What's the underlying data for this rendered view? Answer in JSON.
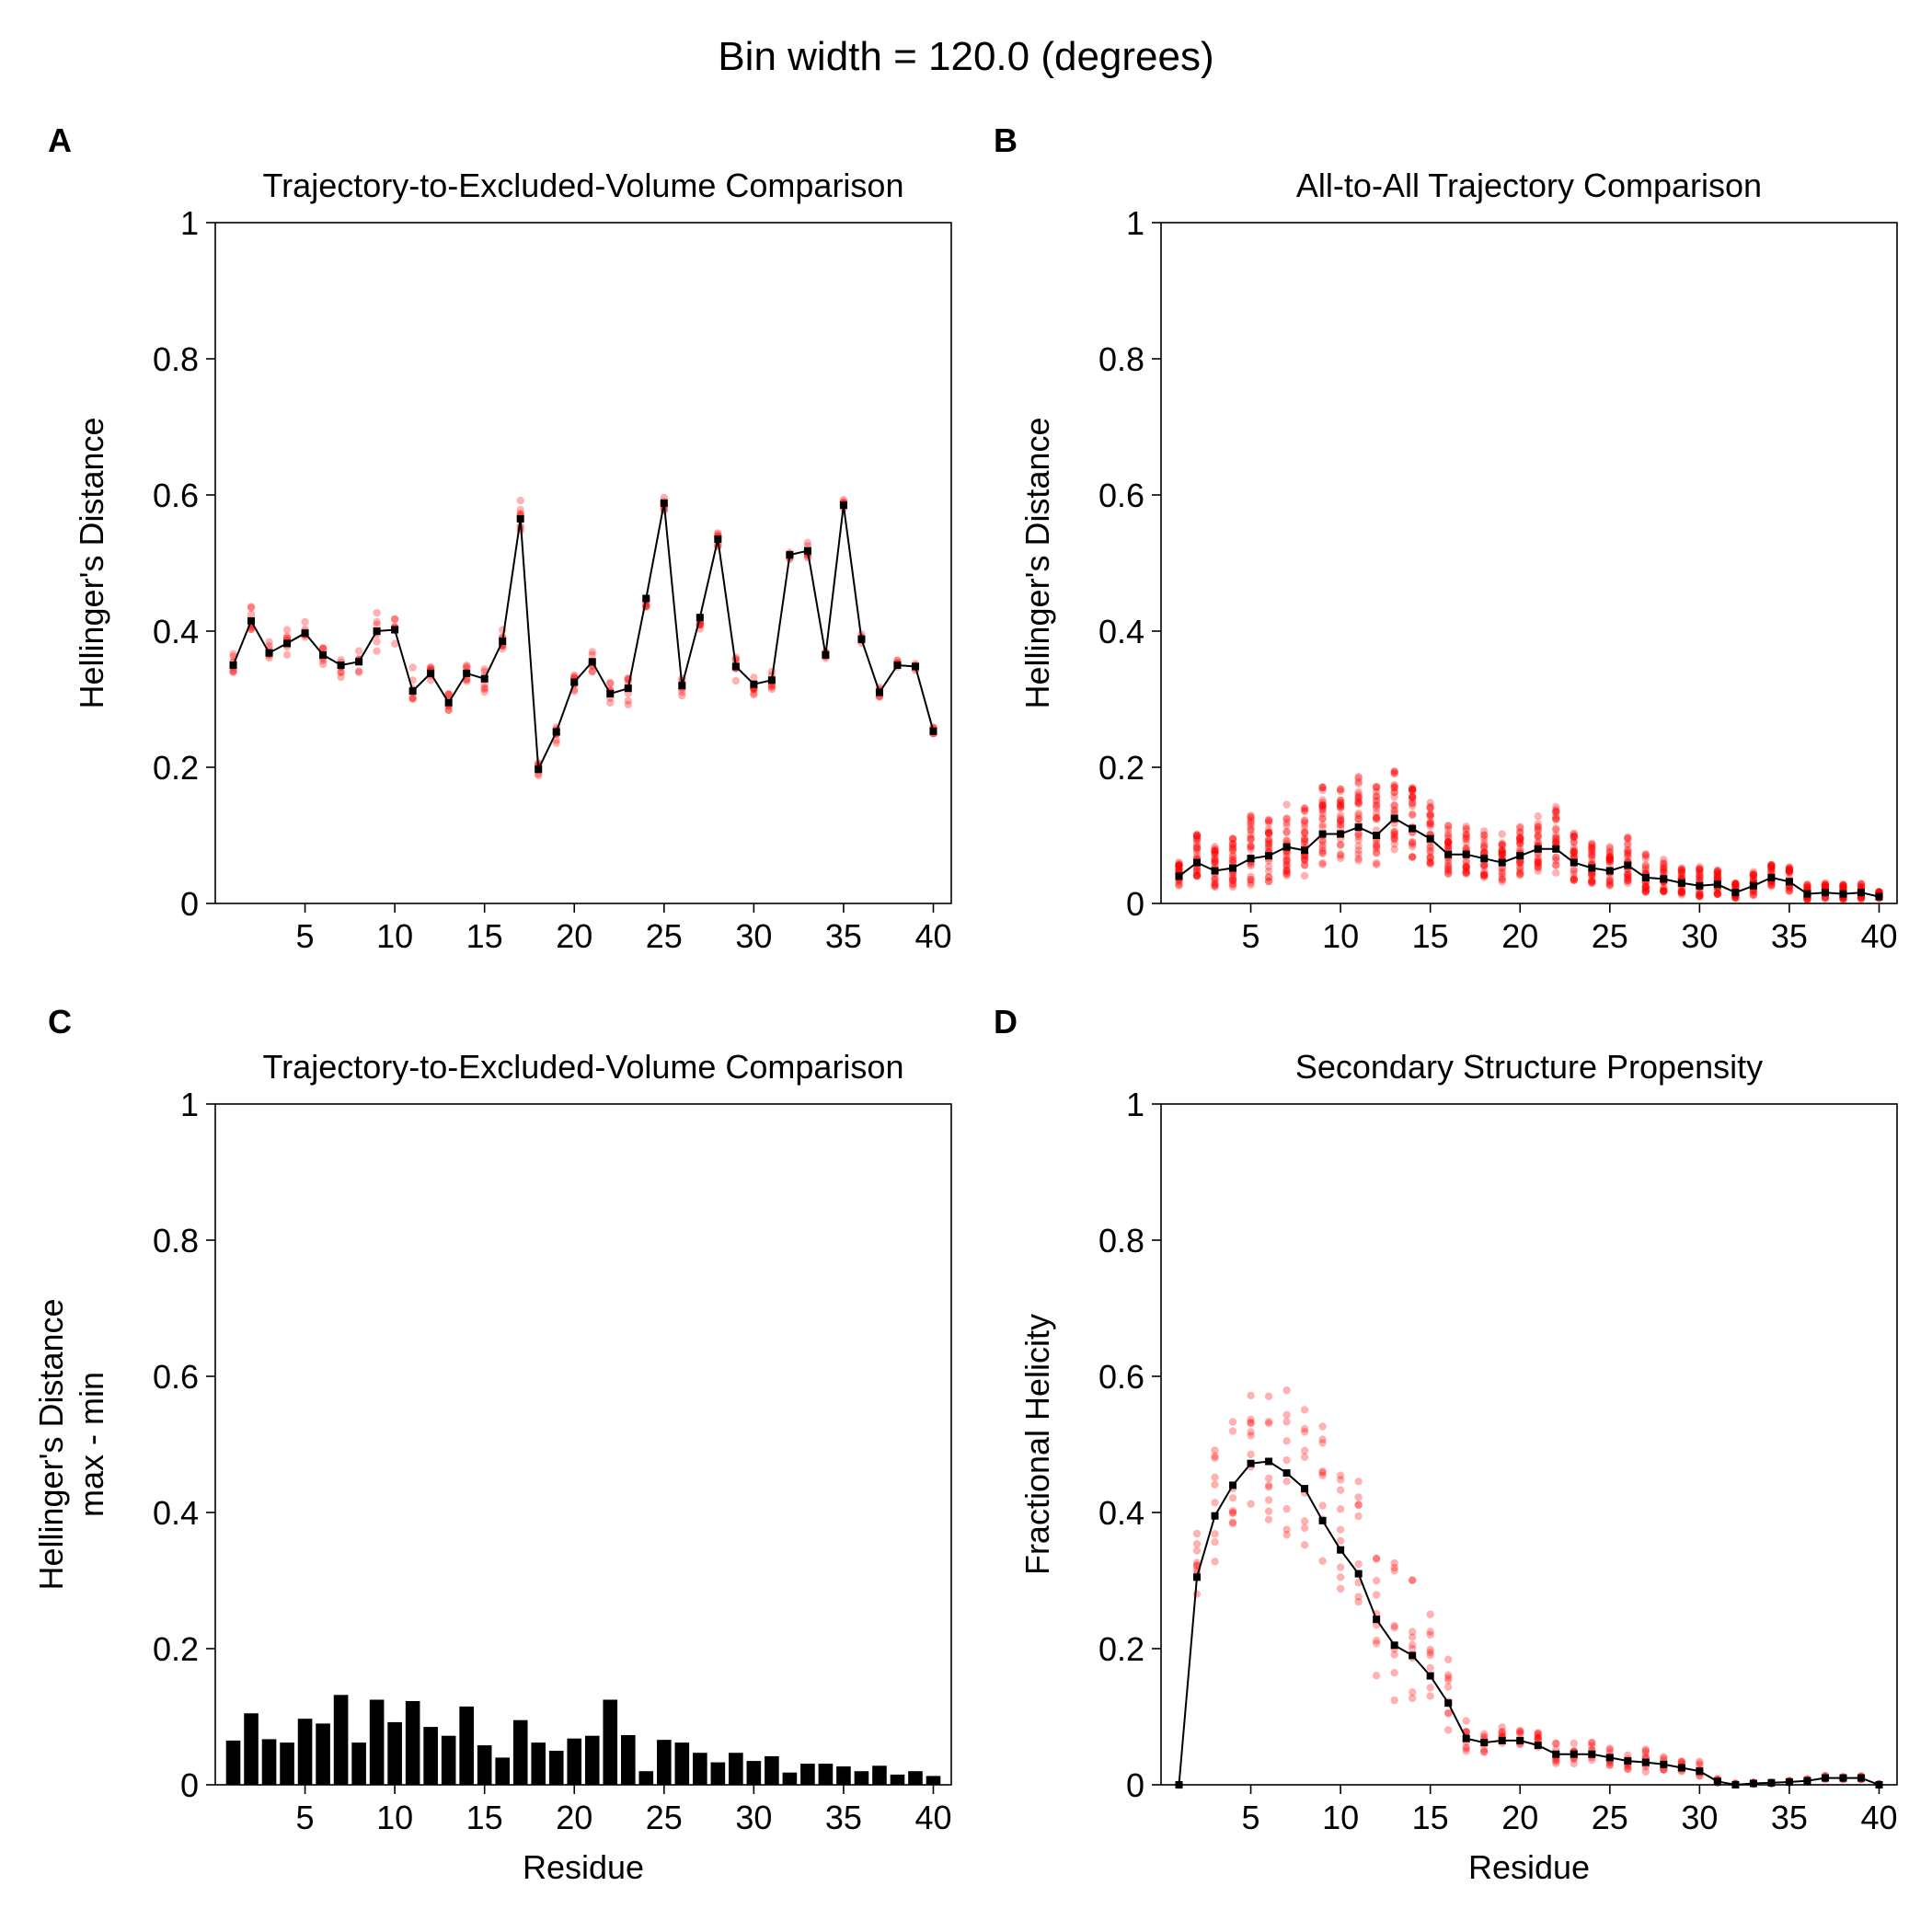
{
  "suptitle": "Bin width = 120.0 (degrees)",
  "colors": {
    "line": "#000000",
    "scatter": "#ff0000",
    "bar": "#000000"
  },
  "chart_data": [
    {
      "panel": "A",
      "type": "line",
      "title": "Trajectory-to-Excluded-Volume Comparison",
      "xlabel": "",
      "ylabel": [
        "Hellinger's Distance"
      ],
      "xlim": [
        0,
        41
      ],
      "ylim": [
        0,
        1
      ],
      "xticks": [
        5,
        10,
        15,
        20,
        25,
        30,
        35,
        40
      ],
      "yticks": [
        0,
        0.2,
        0.4,
        0.6,
        0.8,
        1
      ],
      "ytick_labels": [
        "0",
        "0.2",
        "0.4",
        "0.6",
        "0.8",
        "1"
      ],
      "x": [
        1,
        2,
        3,
        4,
        5,
        6,
        7,
        8,
        9,
        10,
        11,
        12,
        13,
        14,
        15,
        16,
        17,
        18,
        19,
        20,
        21,
        22,
        23,
        24,
        25,
        26,
        27,
        28,
        29,
        30,
        31,
        32,
        33,
        34,
        35,
        36,
        37,
        38,
        39,
        40
      ],
      "mean": [
        0.35,
        0.415,
        0.368,
        0.382,
        0.397,
        0.365,
        0.35,
        0.355,
        0.4,
        0.402,
        0.312,
        0.338,
        0.295,
        0.338,
        0.33,
        0.385,
        0.565,
        0.197,
        0.252,
        0.325,
        0.355,
        0.308,
        0.316,
        0.448,
        0.588,
        0.32,
        0.42,
        0.535,
        0.348,
        0.322,
        0.328,
        0.512,
        0.518,
        0.365,
        0.585,
        0.388,
        0.31,
        0.35,
        0.348,
        0.253
      ],
      "scatter_spread": [
        0.03,
        0.03,
        0.03,
        0.03,
        0.03,
        0.04,
        0.03,
        0.03,
        0.04,
        0.04,
        0.04,
        0.03,
        0.03,
        0.03,
        0.03,
        0.03,
        0.04,
        0.02,
        0.02,
        0.03,
        0.03,
        0.04,
        0.04,
        0.02,
        0.02,
        0.02,
        0.03,
        0.02,
        0.03,
        0.02,
        0.02,
        0.01,
        0.02,
        0.01,
        0.01,
        0.01,
        0.01,
        0.01,
        0.01,
        0.01
      ],
      "replicates": 8,
      "show_scatter": true
    },
    {
      "panel": "B",
      "type": "line",
      "title": "All-to-All Trajectory Comparison",
      "xlabel": "",
      "ylabel": [
        "Hellinger's Distance"
      ],
      "xlim": [
        0,
        41
      ],
      "ylim": [
        0,
        1
      ],
      "xticks": [
        5,
        10,
        15,
        20,
        25,
        30,
        35,
        40
      ],
      "yticks": [
        0,
        0.2,
        0.4,
        0.6,
        0.8,
        1
      ],
      "ytick_labels": [
        "0",
        "0.2",
        "0.4",
        "0.6",
        "0.8",
        "1"
      ],
      "x": [
        1,
        2,
        3,
        4,
        5,
        6,
        7,
        8,
        9,
        10,
        11,
        12,
        13,
        14,
        15,
        16,
        17,
        18,
        19,
        20,
        21,
        22,
        23,
        24,
        25,
        26,
        27,
        28,
        29,
        30,
        31,
        32,
        33,
        34,
        35,
        36,
        37,
        38,
        39,
        40
      ],
      "mean": [
        0.04,
        0.06,
        0.048,
        0.052,
        0.066,
        0.07,
        0.083,
        0.078,
        0.102,
        0.102,
        0.112,
        0.1,
        0.125,
        0.11,
        0.095,
        0.072,
        0.072,
        0.066,
        0.06,
        0.07,
        0.08,
        0.08,
        0.06,
        0.052,
        0.048,
        0.056,
        0.038,
        0.036,
        0.03,
        0.026,
        0.028,
        0.016,
        0.026,
        0.038,
        0.032,
        0.014,
        0.016,
        0.014,
        0.016,
        0.01
      ],
      "scatter_spread": [
        0.03,
        0.06,
        0.05,
        0.06,
        0.09,
        0.08,
        0.09,
        0.09,
        0.1,
        0.1,
        0.11,
        0.1,
        0.1,
        0.09,
        0.08,
        0.06,
        0.06,
        0.06,
        0.06,
        0.06,
        0.07,
        0.09,
        0.06,
        0.05,
        0.05,
        0.06,
        0.05,
        0.04,
        0.04,
        0.04,
        0.03,
        0.02,
        0.03,
        0.03,
        0.03,
        0.02,
        0.02,
        0.02,
        0.02,
        0.01
      ],
      "replicates": 28,
      "show_scatter": true
    },
    {
      "panel": "C",
      "type": "bar",
      "title": "Trajectory-to-Excluded-Volume Comparison",
      "xlabel": "Residue",
      "ylabel": [
        "Hellinger's Distance",
        "max - min"
      ],
      "xlim": [
        0,
        41
      ],
      "ylim": [
        0,
        1
      ],
      "xticks": [
        5,
        10,
        15,
        20,
        25,
        30,
        35,
        40
      ],
      "yticks": [
        0,
        0.2,
        0.4,
        0.6,
        0.8,
        1
      ],
      "ytick_labels": [
        "0",
        "0.2",
        "0.4",
        "0.6",
        "0.8",
        "1"
      ],
      "x": [
        1,
        2,
        3,
        4,
        5,
        6,
        7,
        8,
        9,
        10,
        11,
        12,
        13,
        14,
        15,
        16,
        17,
        18,
        19,
        20,
        21,
        22,
        23,
        24,
        25,
        26,
        27,
        28,
        29,
        30,
        31,
        32,
        33,
        34,
        35,
        36,
        37,
        38,
        39,
        40
      ],
      "values": [
        0.065,
        0.105,
        0.067,
        0.062,
        0.097,
        0.09,
        0.132,
        0.062,
        0.125,
        0.092,
        0.123,
        0.085,
        0.072,
        0.115,
        0.058,
        0.04,
        0.095,
        0.062,
        0.05,
        0.068,
        0.072,
        0.125,
        0.073,
        0.02,
        0.066,
        0.062,
        0.047,
        0.033,
        0.047,
        0.035,
        0.042,
        0.018,
        0.031,
        0.031,
        0.027,
        0.02,
        0.028,
        0.015,
        0.02,
        0.013
      ]
    },
    {
      "panel": "D",
      "type": "line",
      "title": "Secondary Structure Propensity",
      "xlabel": "Residue",
      "ylabel": [
        "Fractional Helicity"
      ],
      "xlim": [
        0,
        41
      ],
      "ylim": [
        0,
        1
      ],
      "xticks": [
        5,
        10,
        15,
        20,
        25,
        30,
        35,
        40
      ],
      "yticks": [
        0,
        0.2,
        0.4,
        0.6,
        0.8,
        1
      ],
      "ytick_labels": [
        "0",
        "0.2",
        "0.4",
        "0.6",
        "0.8",
        "1"
      ],
      "x": [
        1,
        2,
        3,
        4,
        5,
        6,
        7,
        8,
        9,
        10,
        11,
        12,
        13,
        14,
        15,
        16,
        17,
        18,
        19,
        20,
        21,
        22,
        23,
        24,
        25,
        26,
        27,
        28,
        29,
        30,
        31,
        32,
        33,
        34,
        35,
        36,
        37,
        38,
        39,
        40
      ],
      "mean": [
        0,
        0.305,
        0.395,
        0.44,
        0.472,
        0.475,
        0.458,
        0.435,
        0.388,
        0.345,
        0.31,
        0.243,
        0.205,
        0.19,
        0.16,
        0.12,
        0.068,
        0.062,
        0.065,
        0.065,
        0.058,
        0.045,
        0.045,
        0.045,
        0.04,
        0.035,
        0.033,
        0.03,
        0.025,
        0.02,
        0.005,
        0,
        0.002,
        0.003,
        0.004,
        0.006,
        0.01,
        0.01,
        0.01,
        0
      ],
      "scatter_spread": [
        0,
        0.1,
        0.14,
        0.15,
        0.14,
        0.19,
        0.2,
        0.18,
        0.2,
        0.18,
        0.19,
        0.19,
        0.18,
        0.16,
        0.13,
        0.09,
        0.04,
        0.03,
        0.03,
        0.03,
        0.03,
        0.03,
        0.03,
        0.03,
        0.03,
        0.03,
        0.03,
        0.02,
        0.02,
        0.02,
        0.005,
        0.003,
        0.003,
        0.003,
        0.003,
        0.004,
        0.005,
        0.005,
        0.005,
        0.002
      ],
      "replicates": 9,
      "show_scatter": true
    }
  ]
}
